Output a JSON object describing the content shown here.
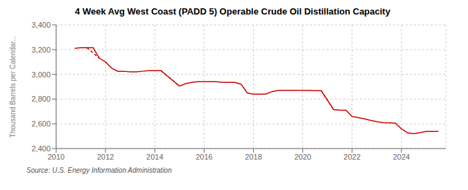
{
  "chart_data": {
    "type": "line",
    "title": "4 Week Avg West Coast (PADD 5) Operable Crude Oil Distillation Capacity",
    "ylabel": "Thousand Barrels per Calendar...",
    "annotations": [
      "Source: U.S. Energy Information Administration"
    ],
    "xlim": [
      2010.0,
      2025.8
    ],
    "xticks": [
      2010,
      2012,
      2014,
      2016,
      2018,
      2020,
      2022,
      2024
    ],
    "ylim": [
      2400,
      3400
    ],
    "yticks": [
      {
        "value": 2400,
        "label": "2,400"
      },
      {
        "value": 2600,
        "label": "2,600"
      },
      {
        "value": 2800,
        "label": "2,800"
      },
      {
        "value": 3000,
        "label": "3,000"
      },
      {
        "value": 3200,
        "label": "3,200"
      },
      {
        "value": 3400,
        "label": "3,400"
      }
    ],
    "grid": true,
    "series": [
      {
        "color": "#cc0000",
        "line_style": "solid",
        "x": [
          2010.75,
          2011.0,
          2011.0,
          2011.25,
          2011.25,
          2011.5,
          2011.75,
          2011.75,
          2012.0,
          2012.0,
          2012.25,
          2012.5,
          2012.75,
          2013.0,
          2013.25,
          2013.5,
          2013.75,
          2014.0,
          2014.25,
          2014.25,
          2015.0,
          2015.25,
          2015.5,
          2015.75,
          2016.0,
          2016.25,
          2016.5,
          2016.75,
          2017.0,
          2017.25,
          2017.5,
          2017.75,
          2018.0,
          2018.25,
          2018.5,
          2018.75,
          2019.0,
          2019.25,
          2019.5,
          2019.75,
          2020.0,
          2020.25,
          2020.5,
          2020.75,
          2021.25,
          2021.5,
          2021.75,
          2022.0,
          2022.25,
          2022.5,
          2022.75,
          2023.0,
          2023.25,
          2023.5,
          2023.75,
          2024.0,
          2024.25,
          2024.5,
          2024.75,
          2025.0,
          2025.5
        ],
        "values": [
          3210,
          3215,
          3215,
          3215,
          3215,
          3215,
          3130,
          3130,
          3100,
          3100,
          3050,
          3025,
          3025,
          3020,
          3020,
          3025,
          3030,
          3030,
          3030,
          3030,
          2905,
          2925,
          2935,
          2940,
          2940,
          2940,
          2940,
          2935,
          2935,
          2935,
          2920,
          2850,
          2840,
          2840,
          2840,
          2860,
          2870,
          2870,
          2870,
          2870,
          2870,
          2870,
          2868,
          2868,
          2715,
          2710,
          2710,
          2660,
          2650,
          2640,
          2628,
          2618,
          2610,
          2608,
          2605,
          2560,
          2527,
          2520,
          2528,
          2538,
          2538
        ]
      },
      {
        "color": "#cc0000",
        "line_style": "dashed",
        "x": [
          2011.25,
          2011.75
        ],
        "values": [
          3215,
          3130
        ]
      },
      {
        "color": "#cc0000",
        "line_style": "dashed",
        "x": [
          2014.25,
          2015.0
        ],
        "values": [
          3030,
          2905
        ]
      },
      {
        "color": "#cc0000",
        "line_style": "dashed",
        "x": [
          2020.75,
          2021.25
        ],
        "values": [
          2868,
          2715
        ]
      }
    ]
  }
}
